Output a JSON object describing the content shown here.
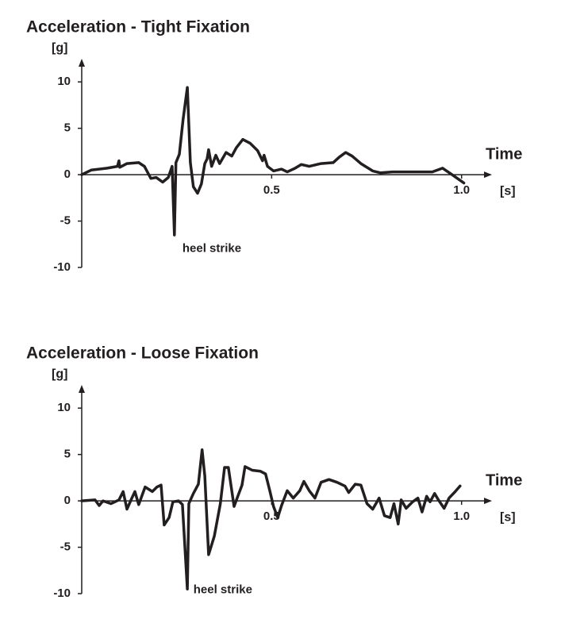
{
  "chart_data": [
    {
      "type": "line",
      "title": "Acceleration - Tight Fixation",
      "xlabel": "Time",
      "xunit": "[s]",
      "ylabel": "[g]",
      "color": "#231f20",
      "x": [
        0,
        0.025,
        0.067,
        0.094,
        0.098,
        0.1,
        0.119,
        0.15,
        0.165,
        0.182,
        0.196,
        0.213,
        0.228,
        0.238,
        0.244,
        0.248,
        0.257,
        0.267,
        0.278,
        0.286,
        0.294,
        0.305,
        0.315,
        0.324,
        0.33,
        0.334,
        0.342,
        0.353,
        0.363,
        0.38,
        0.395,
        0.407,
        0.424,
        0.443,
        0.463,
        0.476,
        0.48,
        0.489,
        0.505,
        0.526,
        0.541,
        0.562,
        0.578,
        0.599,
        0.63,
        0.662,
        0.678,
        0.695,
        0.712,
        0.735,
        0.766,
        0.787,
        0.818,
        0.871,
        0.923,
        0.95,
        0.975,
        1.006
      ],
      "values": [
        0,
        0.5,
        0.7,
        0.9,
        1.5,
        0.8,
        1.2,
        1.3,
        0.9,
        -0.4,
        -0.3,
        -0.8,
        -0.3,
        0.9,
        -6.5,
        1.3,
        2.2,
        6,
        9.4,
        1.3,
        -1.3,
        -2,
        -1,
        1.2,
        1.7,
        2.7,
        0.9,
        2.1,
        1.2,
        2.4,
        2,
        2.9,
        3.8,
        3.4,
        2.6,
        1.5,
        2.1,
        0.9,
        0.4,
        0.6,
        0.3,
        0.7,
        1.1,
        0.9,
        1.2,
        1.3,
        1.9,
        2.4,
        2,
        1.2,
        0.4,
        0.2,
        0.3,
        0.3,
        0.3,
        0.7,
        0,
        -0.9
      ],
      "xlim": [
        0,
        1.08
      ],
      "ylim": [
        -10,
        12.5
      ],
      "xticks": [
        0.5,
        {
          "value": 1,
          "label": "1.0"
        }
      ],
      "yticks": [
        -10,
        -5,
        0,
        5,
        10
      ],
      "annotations": [
        {
          "text": "heel strike",
          "x": 0.265,
          "y": -8
        }
      ]
    },
    {
      "type": "line",
      "title": "Acceleration - Loose Fixation",
      "xlabel": "Time",
      "xunit": "[s]",
      "ylabel": "[g]",
      "color": "#231f20",
      "x": [
        0,
        0.035,
        0.046,
        0.056,
        0.077,
        0.098,
        0.109,
        0.119,
        0.132,
        0.14,
        0.15,
        0.167,
        0.186,
        0.198,
        0.209,
        0.217,
        0.23,
        0.24,
        0.255,
        0.265,
        0.278,
        0.282,
        0.294,
        0.307,
        0.317,
        0.324,
        0.334,
        0.349,
        0.365,
        0.376,
        0.386,
        0.401,
        0.411,
        0.422,
        0.43,
        0.449,
        0.47,
        0.484,
        0.495,
        0.505,
        0.516,
        0.526,
        0.541,
        0.557,
        0.574,
        0.585,
        0.599,
        0.614,
        0.63,
        0.651,
        0.672,
        0.693,
        0.703,
        0.72,
        0.735,
        0.751,
        0.766,
        0.783,
        0.797,
        0.812,
        0.822,
        0.833,
        0.841,
        0.854,
        0.871,
        0.885,
        0.896,
        0.908,
        0.917,
        0.929,
        0.939,
        0.954,
        0.967,
        0.981,
        0.996
      ],
      "values": [
        0,
        0.1,
        -0.5,
        0,
        -0.3,
        0.1,
        1,
        -0.9,
        0.3,
        1,
        -0.4,
        1.5,
        1,
        1.5,
        1.7,
        -2.6,
        -1.8,
        -0.1,
        0,
        -0.4,
        -9.5,
        -0.3,
        0.8,
        1.8,
        5.5,
        2.7,
        -5.8,
        -3.8,
        -0.3,
        3.6,
        3.6,
        -0.6,
        0.5,
        1.7,
        3.7,
        3.3,
        3.2,
        2.9,
        1.1,
        -0.6,
        -1.8,
        -0.5,
        1.1,
        0.3,
        1.1,
        2.1,
        1.1,
        0.3,
        2,
        2.3,
        2,
        1.6,
        0.9,
        1.8,
        1.7,
        -0.3,
        -0.9,
        0.3,
        -1.6,
        -1.8,
        -0.3,
        -2.5,
        0.1,
        -0.8,
        -0.1,
        0.3,
        -1.2,
        0.5,
        -0.1,
        0.8,
        0.1,
        -0.8,
        0.3,
        0.9,
        1.6
      ],
      "xlim": [
        0,
        1.08
      ],
      "ylim": [
        -10,
        12.5
      ],
      "xticks": [
        0.5,
        {
          "value": 1,
          "label": "1.0"
        }
      ],
      "yticks": [
        -10,
        -5,
        0,
        5,
        10
      ],
      "annotations": [
        {
          "text": "heel strike",
          "x": 0.294,
          "y": -9.6
        }
      ]
    }
  ]
}
